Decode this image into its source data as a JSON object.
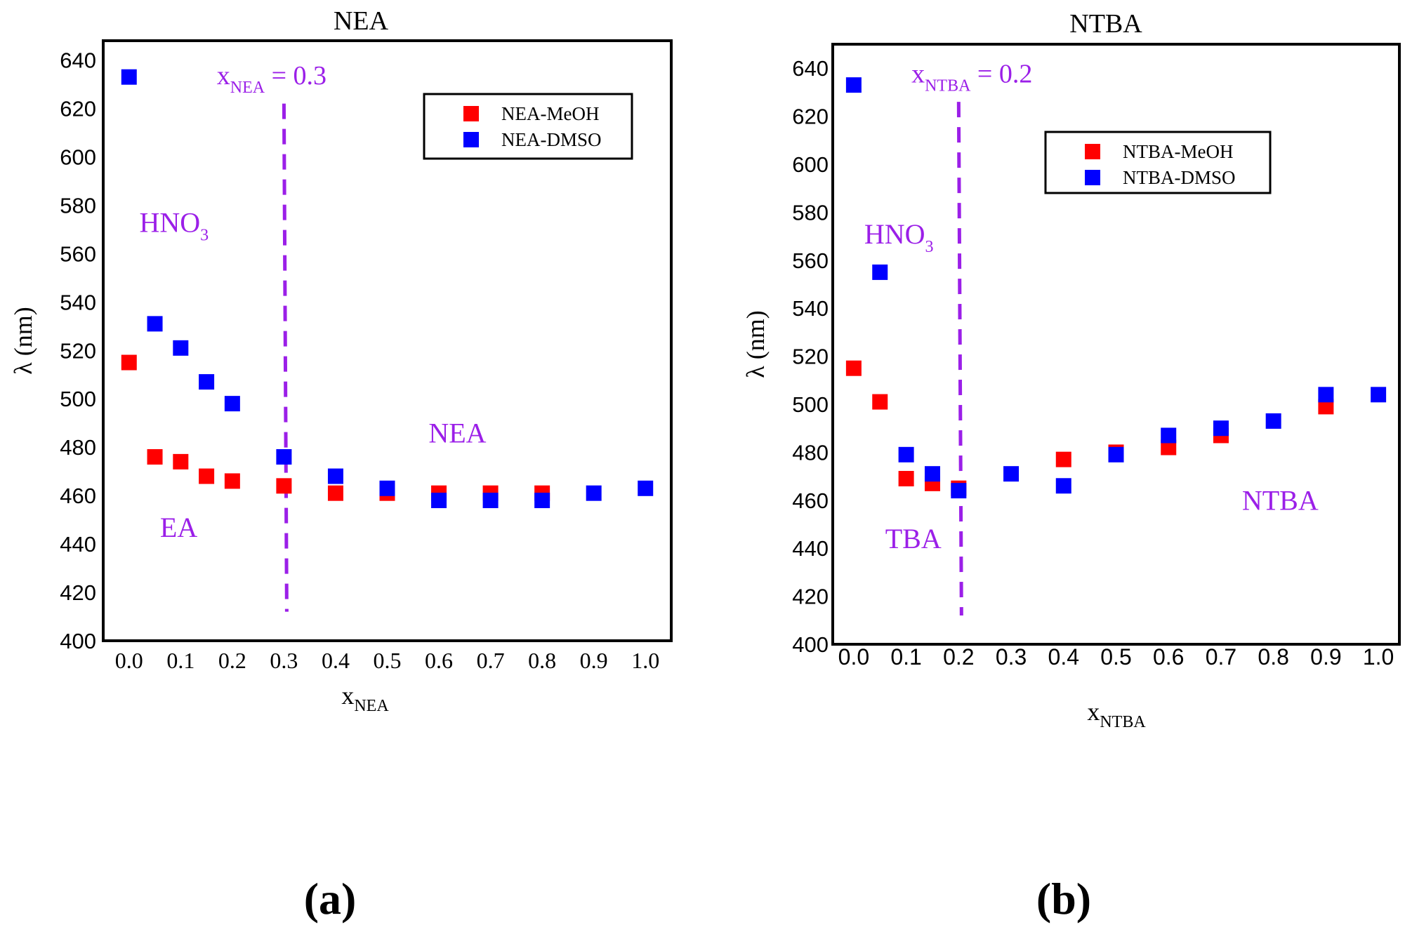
{
  "colors": {
    "meoh": "#ff0000",
    "dmso": "#0000ff",
    "annotation": "#9b1fe8",
    "axis": "#000000"
  },
  "chart_data": [
    {
      "type": "scatter",
      "panel_label": "(a)",
      "title": "NEA",
      "ylabel": "λ (nm)",
      "xlabel": {
        "main": "x",
        "sub": "NEA"
      },
      "xlim": [
        -0.05,
        1.05
      ],
      "ylim": [
        400,
        648
      ],
      "x_ticks": [
        0.0,
        0.1,
        0.2,
        0.3,
        0.4,
        0.5,
        0.6,
        0.7,
        0.8,
        0.9,
        1.0
      ],
      "x_tick_labels": [
        "0.0",
        "0.1",
        "0.2",
        "0.3",
        "0.4",
        "0.5",
        "0.6",
        "0.7",
        "0.8",
        "0.9",
        "1.0"
      ],
      "y_ticks": [
        400,
        420,
        440,
        460,
        480,
        500,
        520,
        540,
        560,
        580,
        600,
        620,
        640
      ],
      "y_tick_labels": [
        "400",
        "420",
        "440",
        "460",
        "480",
        "500",
        "520",
        "540",
        "560",
        "580",
        "600",
        "620",
        "640"
      ],
      "legend_position": "top-right",
      "series": [
        {
          "name": "NEA-MeOH",
          "color": "#ff0000",
          "x": [
            0.0,
            0.05,
            0.1,
            0.15,
            0.2,
            0.3,
            0.4,
            0.5,
            0.6,
            0.7,
            0.8
          ],
          "y": [
            515,
            476,
            474,
            468,
            466,
            464,
            461,
            461,
            461,
            461,
            461
          ]
        },
        {
          "name": "NEA-DMSO",
          "color": "#0000ff",
          "x": [
            0.0,
            0.05,
            0.1,
            0.15,
            0.2,
            0.3,
            0.4,
            0.5,
            0.6,
            0.7,
            0.8,
            0.9,
            1.0
          ],
          "y": [
            633,
            531,
            521,
            507,
            498,
            476,
            468,
            463,
            458,
            458,
            458,
            461,
            463
          ]
        }
      ],
      "divider": {
        "x": 0.3,
        "y_from": 412,
        "y_to": 622
      },
      "annotations": [
        {
          "id": "divider-label",
          "text": "x",
          "sub": "NEA",
          "suffix": " = 0.3",
          "x": 0.17,
          "y": 630
        },
        {
          "id": "hno3",
          "text": "HNO",
          "sub": "3",
          "suffix": "",
          "x": 0.02,
          "y": 569
        },
        {
          "id": "ea",
          "text": "EA",
          "sub": "",
          "suffix": "",
          "x": 0.06,
          "y": 443
        },
        {
          "id": "nea",
          "text": "NEA",
          "sub": "",
          "suffix": "",
          "x": 0.58,
          "y": 482
        }
      ]
    },
    {
      "type": "scatter",
      "panel_label": "(b)",
      "title": "NTBA",
      "ylabel": "λ (nm)",
      "xlabel": {
        "main": "x",
        "sub": "NTBA"
      },
      "xlim": [
        -0.04,
        1.04
      ],
      "ylim": [
        400,
        650
      ],
      "x_ticks": [
        0.0,
        0.1,
        0.2,
        0.3,
        0.4,
        0.5,
        0.6,
        0.7,
        0.8,
        0.9,
        1.0
      ],
      "x_tick_labels": [
        "0.0",
        "0.1",
        "0.2",
        "0.3",
        "0.4",
        "0.5",
        "0.6",
        "0.7",
        "0.8",
        "0.9",
        "1.0"
      ],
      "y_ticks": [
        400,
        420,
        440,
        460,
        480,
        500,
        520,
        540,
        560,
        580,
        600,
        620,
        640
      ],
      "y_tick_labels": [
        "400",
        "420",
        "440",
        "460",
        "480",
        "500",
        "520",
        "540",
        "560",
        "580",
        "600",
        "620",
        "640"
      ],
      "legend_position": "upper-middle-right",
      "series": [
        {
          "name": "NTBA-MeOH",
          "color": "#ff0000",
          "x": [
            0.0,
            0.05,
            0.1,
            0.15,
            0.2,
            0.4,
            0.5,
            0.6,
            0.7,
            0.9
          ],
          "y": [
            515,
            501,
            469,
            467,
            465,
            477,
            480,
            482,
            487,
            499
          ]
        },
        {
          "name": "NTBA-DMSO",
          "color": "#0000ff",
          "x": [
            0.0,
            0.05,
            0.1,
            0.15,
            0.2,
            0.3,
            0.4,
            0.5,
            0.6,
            0.7,
            0.8,
            0.9,
            1.0
          ],
          "y": [
            633,
            555,
            479,
            471,
            464,
            471,
            466,
            479,
            487,
            490,
            493,
            504,
            504
          ]
        }
      ],
      "divider": {
        "x": 0.2,
        "y_from": 412,
        "y_to": 626
      },
      "annotations": [
        {
          "id": "divider-label",
          "text": "x",
          "sub": "NTBA",
          "suffix": " = 0.2",
          "x": 0.11,
          "y": 634
        },
        {
          "id": "hno3",
          "text": "HNO",
          "sub": "3",
          "suffix": "",
          "x": 0.02,
          "y": 567
        },
        {
          "id": "tba",
          "text": "TBA",
          "sub": "",
          "suffix": "",
          "x": 0.06,
          "y": 440
        },
        {
          "id": "ntba",
          "text": "NTBA",
          "sub": "",
          "suffix": "",
          "x": 0.74,
          "y": 456
        }
      ]
    }
  ]
}
